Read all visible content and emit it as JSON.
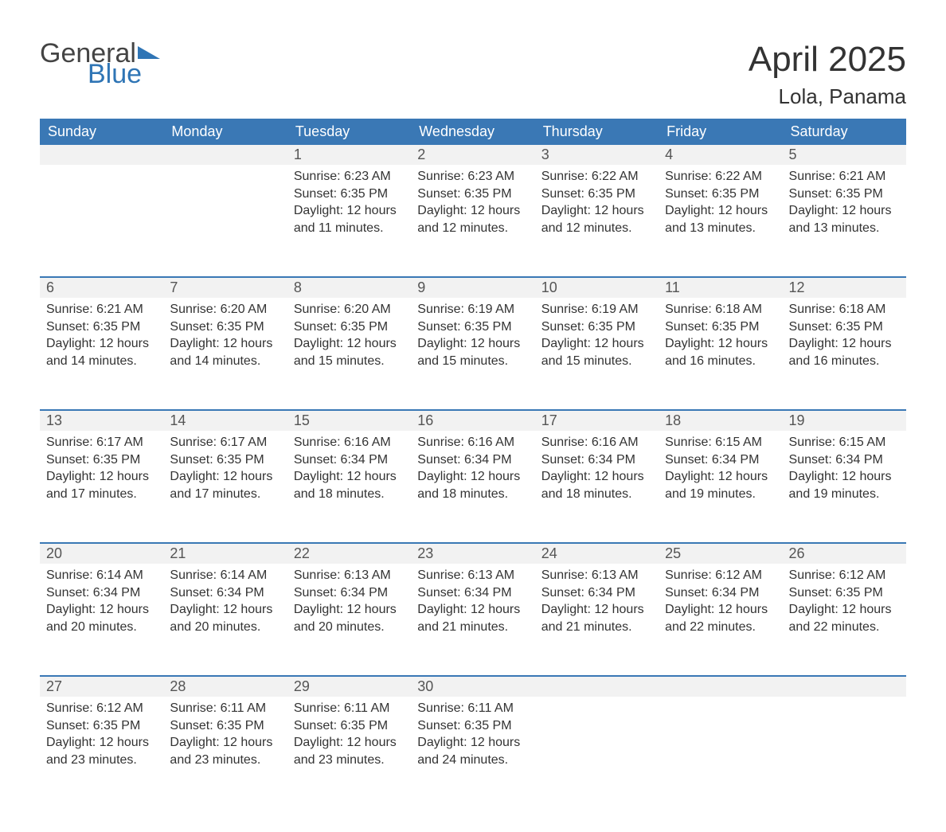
{
  "logo": {
    "part1": "General",
    "part2": "Blue"
  },
  "title": "April 2025",
  "location": "Lola, Panama",
  "colors": {
    "header_bg": "#3a78b5",
    "header_text": "#ffffff",
    "daynum_bg": "#f2f2f2",
    "row_border": "#3a78b5",
    "logo_blue": "#2f75b5",
    "text": "#333333"
  },
  "weekdays": [
    "Sunday",
    "Monday",
    "Tuesday",
    "Wednesday",
    "Thursday",
    "Friday",
    "Saturday"
  ],
  "weeks": [
    [
      null,
      null,
      {
        "n": "1",
        "sunrise": "Sunrise: 6:23 AM",
        "sunset": "Sunset: 6:35 PM",
        "dl1": "Daylight: 12 hours",
        "dl2": "and 11 minutes."
      },
      {
        "n": "2",
        "sunrise": "Sunrise: 6:23 AM",
        "sunset": "Sunset: 6:35 PM",
        "dl1": "Daylight: 12 hours",
        "dl2": "and 12 minutes."
      },
      {
        "n": "3",
        "sunrise": "Sunrise: 6:22 AM",
        "sunset": "Sunset: 6:35 PM",
        "dl1": "Daylight: 12 hours",
        "dl2": "and 12 minutes."
      },
      {
        "n": "4",
        "sunrise": "Sunrise: 6:22 AM",
        "sunset": "Sunset: 6:35 PM",
        "dl1": "Daylight: 12 hours",
        "dl2": "and 13 minutes."
      },
      {
        "n": "5",
        "sunrise": "Sunrise: 6:21 AM",
        "sunset": "Sunset: 6:35 PM",
        "dl1": "Daylight: 12 hours",
        "dl2": "and 13 minutes."
      }
    ],
    [
      {
        "n": "6",
        "sunrise": "Sunrise: 6:21 AM",
        "sunset": "Sunset: 6:35 PM",
        "dl1": "Daylight: 12 hours",
        "dl2": "and 14 minutes."
      },
      {
        "n": "7",
        "sunrise": "Sunrise: 6:20 AM",
        "sunset": "Sunset: 6:35 PM",
        "dl1": "Daylight: 12 hours",
        "dl2": "and 14 minutes."
      },
      {
        "n": "8",
        "sunrise": "Sunrise: 6:20 AM",
        "sunset": "Sunset: 6:35 PM",
        "dl1": "Daylight: 12 hours",
        "dl2": "and 15 minutes."
      },
      {
        "n": "9",
        "sunrise": "Sunrise: 6:19 AM",
        "sunset": "Sunset: 6:35 PM",
        "dl1": "Daylight: 12 hours",
        "dl2": "and 15 minutes."
      },
      {
        "n": "10",
        "sunrise": "Sunrise: 6:19 AM",
        "sunset": "Sunset: 6:35 PM",
        "dl1": "Daylight: 12 hours",
        "dl2": "and 15 minutes."
      },
      {
        "n": "11",
        "sunrise": "Sunrise: 6:18 AM",
        "sunset": "Sunset: 6:35 PM",
        "dl1": "Daylight: 12 hours",
        "dl2": "and 16 minutes."
      },
      {
        "n": "12",
        "sunrise": "Sunrise: 6:18 AM",
        "sunset": "Sunset: 6:35 PM",
        "dl1": "Daylight: 12 hours",
        "dl2": "and 16 minutes."
      }
    ],
    [
      {
        "n": "13",
        "sunrise": "Sunrise: 6:17 AM",
        "sunset": "Sunset: 6:35 PM",
        "dl1": "Daylight: 12 hours",
        "dl2": "and 17 minutes."
      },
      {
        "n": "14",
        "sunrise": "Sunrise: 6:17 AM",
        "sunset": "Sunset: 6:35 PM",
        "dl1": "Daylight: 12 hours",
        "dl2": "and 17 minutes."
      },
      {
        "n": "15",
        "sunrise": "Sunrise: 6:16 AM",
        "sunset": "Sunset: 6:34 PM",
        "dl1": "Daylight: 12 hours",
        "dl2": "and 18 minutes."
      },
      {
        "n": "16",
        "sunrise": "Sunrise: 6:16 AM",
        "sunset": "Sunset: 6:34 PM",
        "dl1": "Daylight: 12 hours",
        "dl2": "and 18 minutes."
      },
      {
        "n": "17",
        "sunrise": "Sunrise: 6:16 AM",
        "sunset": "Sunset: 6:34 PM",
        "dl1": "Daylight: 12 hours",
        "dl2": "and 18 minutes."
      },
      {
        "n": "18",
        "sunrise": "Sunrise: 6:15 AM",
        "sunset": "Sunset: 6:34 PM",
        "dl1": "Daylight: 12 hours",
        "dl2": "and 19 minutes."
      },
      {
        "n": "19",
        "sunrise": "Sunrise: 6:15 AM",
        "sunset": "Sunset: 6:34 PM",
        "dl1": "Daylight: 12 hours",
        "dl2": "and 19 minutes."
      }
    ],
    [
      {
        "n": "20",
        "sunrise": "Sunrise: 6:14 AM",
        "sunset": "Sunset: 6:34 PM",
        "dl1": "Daylight: 12 hours",
        "dl2": "and 20 minutes."
      },
      {
        "n": "21",
        "sunrise": "Sunrise: 6:14 AM",
        "sunset": "Sunset: 6:34 PM",
        "dl1": "Daylight: 12 hours",
        "dl2": "and 20 minutes."
      },
      {
        "n": "22",
        "sunrise": "Sunrise: 6:13 AM",
        "sunset": "Sunset: 6:34 PM",
        "dl1": "Daylight: 12 hours",
        "dl2": "and 20 minutes."
      },
      {
        "n": "23",
        "sunrise": "Sunrise: 6:13 AM",
        "sunset": "Sunset: 6:34 PM",
        "dl1": "Daylight: 12 hours",
        "dl2": "and 21 minutes."
      },
      {
        "n": "24",
        "sunrise": "Sunrise: 6:13 AM",
        "sunset": "Sunset: 6:34 PM",
        "dl1": "Daylight: 12 hours",
        "dl2": "and 21 minutes."
      },
      {
        "n": "25",
        "sunrise": "Sunrise: 6:12 AM",
        "sunset": "Sunset: 6:34 PM",
        "dl1": "Daylight: 12 hours",
        "dl2": "and 22 minutes."
      },
      {
        "n": "26",
        "sunrise": "Sunrise: 6:12 AM",
        "sunset": "Sunset: 6:35 PM",
        "dl1": "Daylight: 12 hours",
        "dl2": "and 22 minutes."
      }
    ],
    [
      {
        "n": "27",
        "sunrise": "Sunrise: 6:12 AM",
        "sunset": "Sunset: 6:35 PM",
        "dl1": "Daylight: 12 hours",
        "dl2": "and 23 minutes."
      },
      {
        "n": "28",
        "sunrise": "Sunrise: 6:11 AM",
        "sunset": "Sunset: 6:35 PM",
        "dl1": "Daylight: 12 hours",
        "dl2": "and 23 minutes."
      },
      {
        "n": "29",
        "sunrise": "Sunrise: 6:11 AM",
        "sunset": "Sunset: 6:35 PM",
        "dl1": "Daylight: 12 hours",
        "dl2": "and 23 minutes."
      },
      {
        "n": "30",
        "sunrise": "Sunrise: 6:11 AM",
        "sunset": "Sunset: 6:35 PM",
        "dl1": "Daylight: 12 hours",
        "dl2": "and 24 minutes."
      },
      null,
      null,
      null
    ]
  ]
}
